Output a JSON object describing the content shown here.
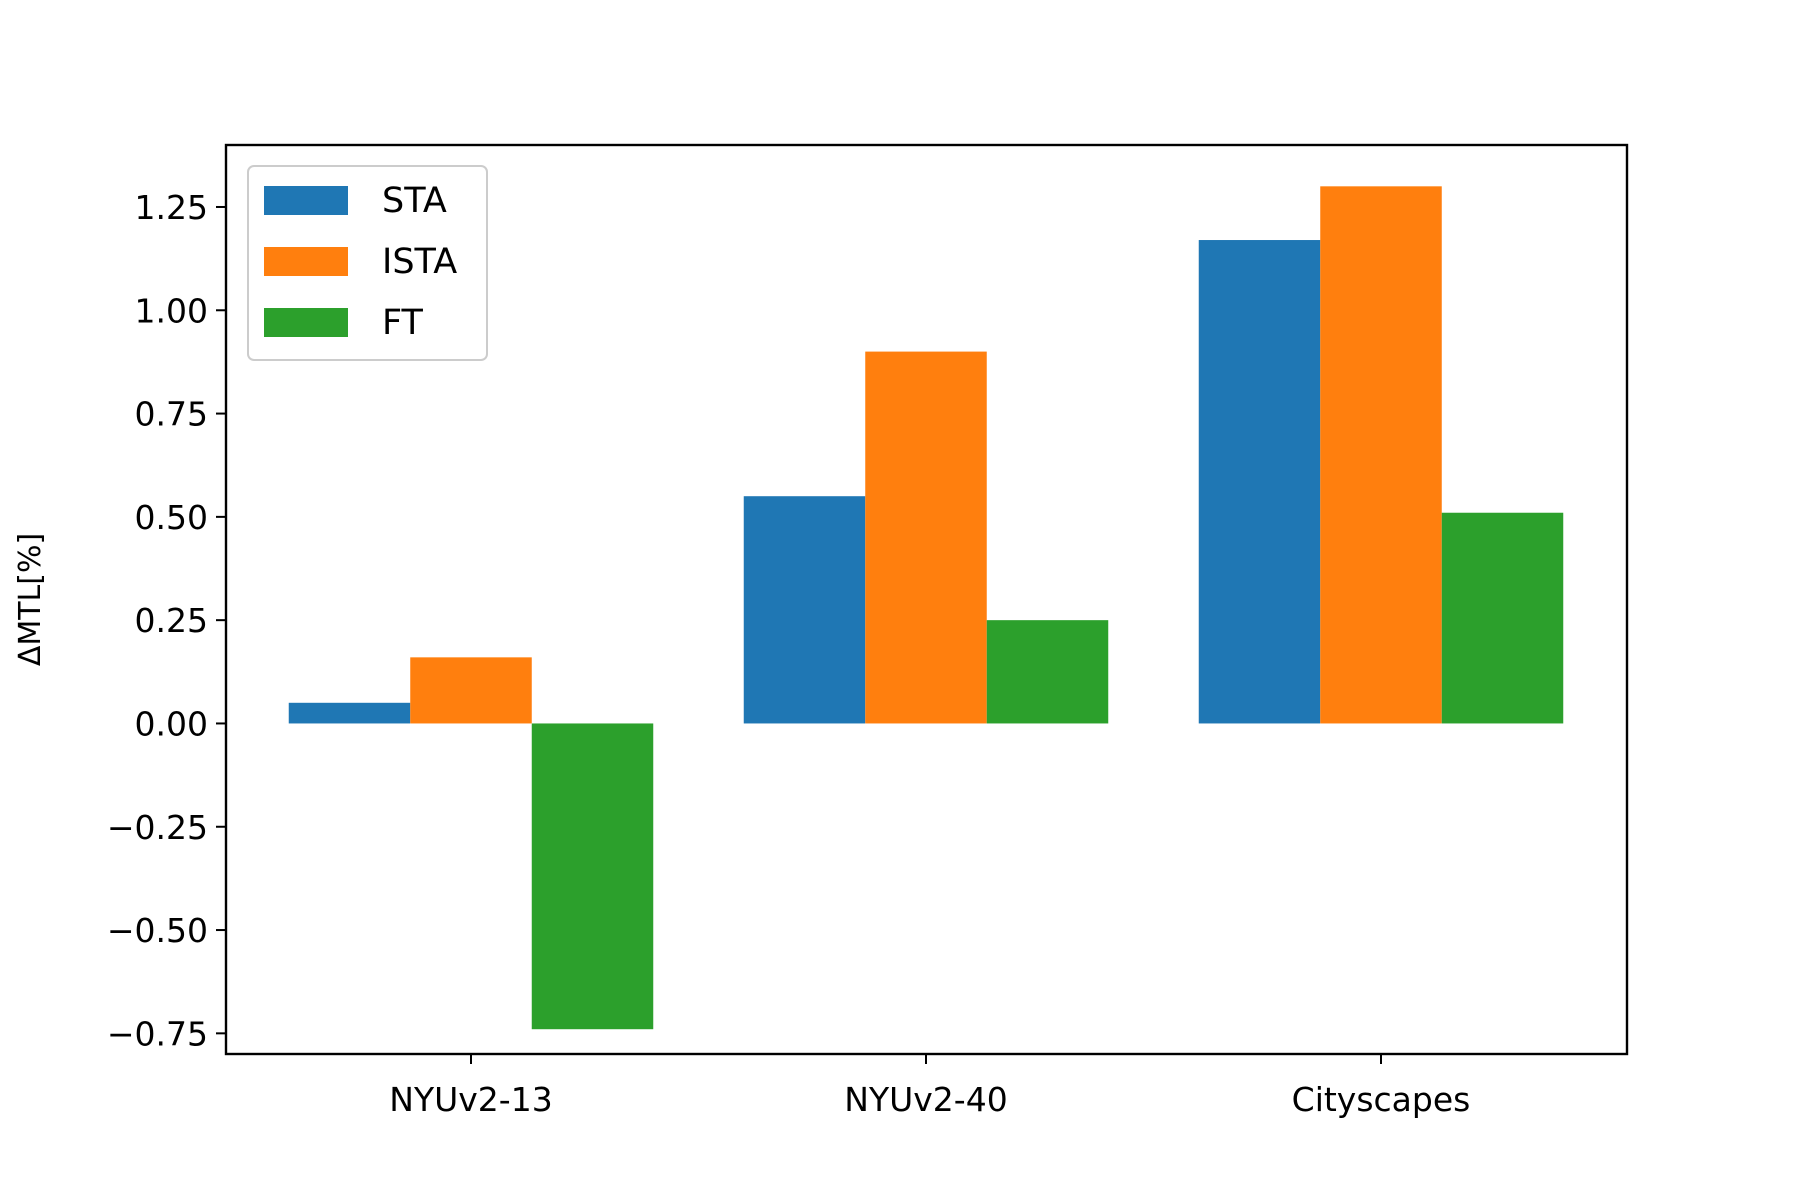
{
  "chart_data": {
    "type": "bar",
    "title": "",
    "xlabel": "",
    "ylabel": "ΔMTL[%]",
    "categories": [
      "NYUv2-13",
      "NYUv2-40",
      "Cityscapes"
    ],
    "series": [
      {
        "name": "STA",
        "values": [
          0.05,
          0.55,
          1.17
        ],
        "color": "#1f77b4"
      },
      {
        "name": "ISTA",
        "values": [
          0.16,
          0.9,
          1.3
        ],
        "color": "#ff7f0e"
      },
      {
        "name": "FT",
        "values": [
          -0.74,
          0.25,
          0.51
        ],
        "color": "#2ca02c"
      }
    ],
    "ylim": [
      -0.8,
      1.4
    ],
    "yticks": [
      -0.75,
      -0.5,
      -0.25,
      0.0,
      0.25,
      0.5,
      0.75,
      1.0,
      1.25
    ],
    "ytick_labels": [
      "−0.75",
      "−0.50",
      "−0.25",
      "0.00",
      "0.25",
      "0.50",
      "0.75",
      "1.00",
      "1.25"
    ],
    "grid": false,
    "legend_position": "top-left"
  }
}
